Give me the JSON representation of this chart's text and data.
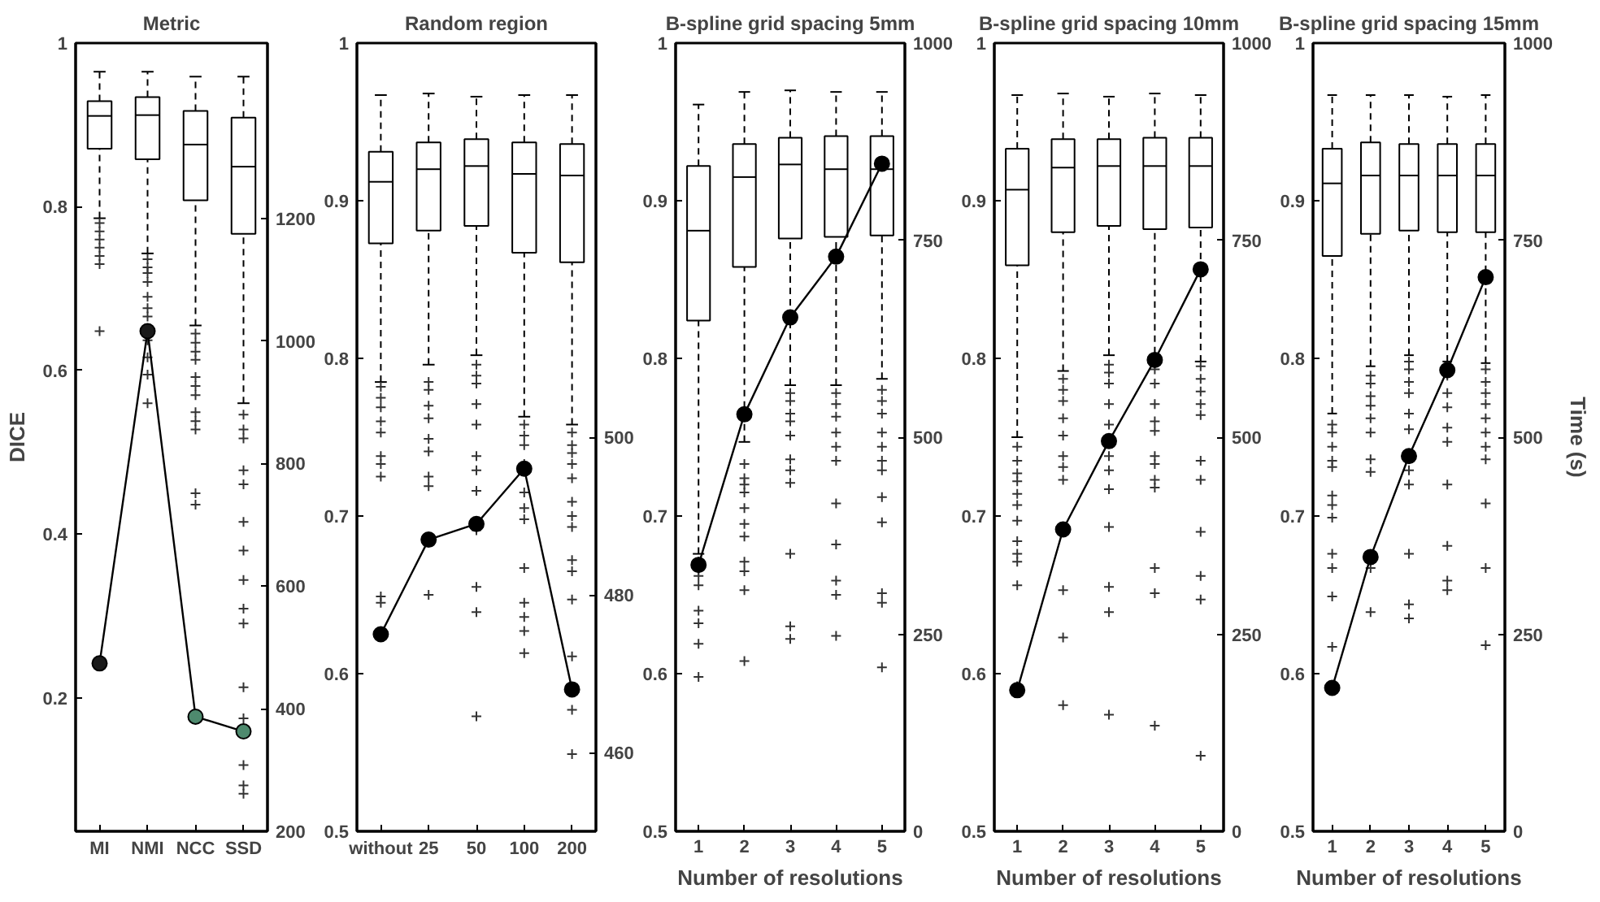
{
  "chart_data": [
    {
      "type": "box",
      "title": "Metric",
      "ylabel": "DICE",
      "categories": [
        "MI",
        "NMI",
        "NCC",
        "SSD"
      ],
      "ylim": [
        0.037,
        1
      ],
      "yticks": [
        0.2,
        0.4,
        0.6,
        0.8,
        1
      ],
      "y2lim": [
        200,
        1486
      ],
      "y2ticks": [
        200,
        400,
        600,
        800,
        1000,
        1200
      ],
      "series": [
        {
          "color": "#000000",
          "marker": "cross",
          "line_style": "dashed",
          "boxes": [
            {
              "low": 0.786,
              "q1": 0.871,
              "median": 0.911,
              "q3": 0.929,
              "high": 0.965,
              "outliers": [
                0.78,
                0.77,
                0.76,
                0.75,
                0.74,
                0.73,
                0.648
              ]
            },
            {
              "low": 0.743,
              "q1": 0.858,
              "median": 0.912,
              "q3": 0.934,
              "high": 0.965,
              "outliers": [
                0.736,
                0.726,
                0.719,
                0.708,
                0.69,
                0.676,
                0.666,
                0.637,
                0.616,
                0.595,
                0.56
              ]
            },
            {
              "low": 0.655,
              "q1": 0.808,
              "median": 0.876,
              "q3": 0.917,
              "high": 0.959,
              "outliers": [
                0.645,
                0.634,
                0.623,
                0.613,
                0.592,
                0.581,
                0.57,
                0.549,
                0.538,
                0.528,
                0.45,
                0.436
              ]
            },
            {
              "low": 0.56,
              "q1": 0.767,
              "median": 0.849,
              "q3": 0.909,
              "high": 0.959,
              "outliers": [
                0.546,
                0.528,
                0.517,
                0.478,
                0.461,
                0.415,
                0.38,
                0.344,
                0.309,
                0.291,
                0.213,
                0.175,
                0.118,
                0.093,
                0.083
              ]
            }
          ]
        },
        {
          "type": "line",
          "axis": "y2",
          "color": "#000000",
          "marker": "circle",
          "colors": [
            "#1a1a1a",
            "#1a1a1a",
            "#4e8a6e",
            "#4e8a6e"
          ],
          "values": [
            474,
            1016,
            387,
            363
          ]
        }
      ]
    },
    {
      "type": "box",
      "title": "Random region",
      "categories": [
        "without",
        "25",
        "50",
        "100",
        "200"
      ],
      "ylim": [
        0.5,
        1
      ],
      "yticks": [
        0.5,
        0.6,
        0.7,
        0.8,
        0.9,
        1
      ],
      "y2lim": [
        450,
        550
      ],
      "y2ticks": [
        460,
        480,
        500
      ],
      "series": [
        {
          "color": "#000000",
          "marker": "cross",
          "line_style": "dashed",
          "boxes": [
            {
              "low": 0.785,
              "q1": 0.873,
              "median": 0.912,
              "q3": 0.931,
              "high": 0.967,
              "outliers": [
                0.782,
                0.775,
                0.769,
                0.76,
                0.753,
                0.738,
                0.733,
                0.725,
                0.649,
                0.645
              ]
            },
            {
              "low": 0.796,
              "q1": 0.881,
              "median": 0.92,
              "q3": 0.937,
              "high": 0.968,
              "outliers": [
                0.785,
                0.78,
                0.77,
                0.762,
                0.749,
                0.741,
                0.725,
                0.719,
                0.65
              ]
            },
            {
              "low": 0.802,
              "q1": 0.884,
              "median": 0.922,
              "q3": 0.939,
              "high": 0.966,
              "outliers": [
                0.796,
                0.789,
                0.784,
                0.771,
                0.758,
                0.738,
                0.729,
                0.716,
                0.691,
                0.655,
                0.639,
                0.573
              ]
            },
            {
              "low": 0.763,
              "q1": 0.867,
              "median": 0.917,
              "q3": 0.937,
              "high": 0.967,
              "outliers": [
                0.758,
                0.751,
                0.745,
                0.733,
                0.715,
                0.705,
                0.698,
                0.667,
                0.645,
                0.636,
                0.627,
                0.613
              ]
            },
            {
              "low": 0.758,
              "q1": 0.861,
              "median": 0.916,
              "q3": 0.936,
              "high": 0.967,
              "outliers": [
                0.753,
                0.745,
                0.74,
                0.733,
                0.724,
                0.709,
                0.7,
                0.693,
                0.672,
                0.665,
                0.647,
                0.611,
                0.577,
                0.549
              ]
            }
          ]
        },
        {
          "type": "line",
          "axis": "y2",
          "color": "#000000",
          "marker": "circle",
          "values": [
            475,
            487,
            489,
            496,
            468
          ]
        }
      ]
    },
    {
      "type": "box",
      "title": "B-spline grid spacing 5mm",
      "xlabel": "Number of resolutions",
      "categories": [
        "1",
        "2",
        "3",
        "4",
        "5"
      ],
      "ylim": [
        0.5,
        1
      ],
      "yticks": [
        0.5,
        0.6,
        0.7,
        0.8,
        0.9,
        1
      ],
      "y2lim": [
        0,
        1000
      ],
      "y2ticks": [
        0,
        250,
        500,
        750,
        1000
      ],
      "series": [
        {
          "color": "#000000",
          "marker": "cross",
          "line_style": "dashed",
          "boxes": [
            {
              "low": 0.676,
              "q1": 0.824,
              "median": 0.881,
              "q3": 0.922,
              "high": 0.961,
              "outliers": [
                0.671,
                0.666,
                0.662,
                0.656,
                0.64,
                0.632,
                0.619,
                0.598
              ]
            },
            {
              "low": 0.747,
              "q1": 0.858,
              "median": 0.915,
              "q3": 0.936,
              "high": 0.969,
              "outliers": [
                0.733,
                0.724,
                0.72,
                0.715,
                0.705,
                0.695,
                0.687,
                0.671,
                0.665,
                0.653,
                0.608
              ]
            },
            {
              "low": 0.783,
              "q1": 0.876,
              "median": 0.923,
              "q3": 0.94,
              "high": 0.97,
              "outliers": [
                0.778,
                0.773,
                0.765,
                0.76,
                0.751,
                0.736,
                0.729,
                0.721,
                0.676,
                0.63,
                0.622
              ]
            },
            {
              "low": 0.783,
              "q1": 0.877,
              "median": 0.92,
              "q3": 0.941,
              "high": 0.969,
              "outliers": [
                0.778,
                0.771,
                0.763,
                0.753,
                0.744,
                0.735,
                0.708,
                0.682,
                0.659,
                0.65,
                0.624
              ]
            },
            {
              "low": 0.787,
              "q1": 0.878,
              "median": 0.92,
              "q3": 0.941,
              "high": 0.969,
              "outliers": [
                0.78,
                0.773,
                0.765,
                0.753,
                0.744,
                0.735,
                0.729,
                0.712,
                0.696,
                0.651,
                0.645,
                0.604
              ]
            }
          ]
        },
        {
          "type": "line",
          "axis": "y2",
          "color": "#000000",
          "marker": "circle",
          "values": [
            338,
            529,
            652,
            729,
            847
          ]
        }
      ]
    },
    {
      "type": "box",
      "title": "B-spline grid spacing 10mm",
      "xlabel": "Number of resolutions",
      "categories": [
        "1",
        "2",
        "3",
        "4",
        "5"
      ],
      "ylim": [
        0.5,
        1
      ],
      "yticks": [
        0.5,
        0.6,
        0.7,
        0.8,
        0.9,
        1
      ],
      "y2lim": [
        0,
        1000
      ],
      "y2ticks": [
        0,
        250,
        500,
        750,
        1000
      ],
      "series": [
        {
          "color": "#000000",
          "marker": "cross",
          "line_style": "dashed",
          "boxes": [
            {
              "low": 0.75,
              "q1": 0.859,
              "median": 0.907,
              "q3": 0.933,
              "high": 0.967,
              "outliers": [
                0.744,
                0.735,
                0.727,
                0.722,
                0.714,
                0.707,
                0.697,
                0.684,
                0.676,
                0.671,
                0.656,
                0.592
              ]
            },
            {
              "low": 0.792,
              "q1": 0.88,
              "median": 0.921,
              "q3": 0.939,
              "high": 0.968,
              "outliers": [
                0.787,
                0.78,
                0.773,
                0.762,
                0.751,
                0.738,
                0.731,
                0.723,
                0.653,
                0.623,
                0.58
              ]
            },
            {
              "low": 0.802,
              "q1": 0.884,
              "median": 0.922,
              "q3": 0.939,
              "high": 0.966,
              "outliers": [
                0.796,
                0.791,
                0.784,
                0.771,
                0.758,
                0.738,
                0.729,
                0.717,
                0.693,
                0.655,
                0.639,
                0.574
              ]
            },
            {
              "low": 0.796,
              "q1": 0.882,
              "median": 0.922,
              "q3": 0.94,
              "high": 0.968,
              "outliers": [
                0.793,
                0.784,
                0.771,
                0.76,
                0.754,
                0.738,
                0.733,
                0.723,
                0.718,
                0.667,
                0.651,
                0.567
              ]
            },
            {
              "low": 0.798,
              "q1": 0.883,
              "median": 0.922,
              "q3": 0.94,
              "high": 0.967,
              "outliers": [
                0.795,
                0.787,
                0.779,
                0.771,
                0.764,
                0.735,
                0.723,
                0.69,
                0.662,
                0.647,
                0.548
              ]
            }
          ]
        },
        {
          "type": "line",
          "axis": "y2",
          "color": "#000000",
          "marker": "circle",
          "values": [
            179,
            383,
            495,
            598,
            713
          ]
        }
      ]
    },
    {
      "type": "box",
      "title": "B-spline grid spacing 15mm",
      "xlabel": "Number of resolutions",
      "y2label": "Time (s)",
      "categories": [
        "1",
        "2",
        "3",
        "4",
        "5"
      ],
      "ylim": [
        0.5,
        1
      ],
      "yticks": [
        0.5,
        0.6,
        0.7,
        0.8,
        0.9,
        1
      ],
      "y2lim": [
        0,
        1000
      ],
      "y2ticks": [
        0,
        250,
        500,
        750,
        1000
      ],
      "series": [
        {
          "color": "#000000",
          "marker": "cross",
          "line_style": "dashed",
          "boxes": [
            {
              "low": 0.765,
              "q1": 0.865,
              "median": 0.911,
              "q3": 0.933,
              "high": 0.967,
              "outliers": [
                0.758,
                0.753,
                0.744,
                0.735,
                0.731,
                0.713,
                0.707,
                0.699,
                0.676,
                0.667,
                0.649,
                0.617
              ]
            },
            {
              "low": 0.795,
              "q1": 0.879,
              "median": 0.916,
              "q3": 0.937,
              "high": 0.967,
              "outliers": [
                0.789,
                0.784,
                0.776,
                0.77,
                0.762,
                0.753,
                0.736,
                0.728,
                0.667,
                0.639
              ]
            },
            {
              "low": 0.802,
              "q1": 0.881,
              "median": 0.916,
              "q3": 0.936,
              "high": 0.967,
              "outliers": [
                0.798,
                0.793,
                0.785,
                0.778,
                0.765,
                0.755,
                0.729,
                0.72,
                0.676,
                0.644,
                0.635
              ]
            },
            {
              "low": 0.798,
              "q1": 0.88,
              "median": 0.916,
              "q3": 0.936,
              "high": 0.966,
              "outliers": [
                0.789,
                0.778,
                0.769,
                0.756,
                0.747,
                0.72,
                0.681,
                0.659,
                0.653
              ]
            },
            {
              "low": 0.797,
              "q1": 0.88,
              "median": 0.916,
              "q3": 0.936,
              "high": 0.967,
              "outliers": [
                0.793,
                0.785,
                0.778,
                0.771,
                0.762,
                0.753,
                0.744,
                0.736,
                0.708,
                0.667,
                0.618
              ]
            }
          ]
        },
        {
          "type": "line",
          "axis": "y2",
          "color": "#000000",
          "marker": "circle",
          "values": [
            182,
            348,
            476,
            585,
            703
          ]
        }
      ]
    }
  ]
}
